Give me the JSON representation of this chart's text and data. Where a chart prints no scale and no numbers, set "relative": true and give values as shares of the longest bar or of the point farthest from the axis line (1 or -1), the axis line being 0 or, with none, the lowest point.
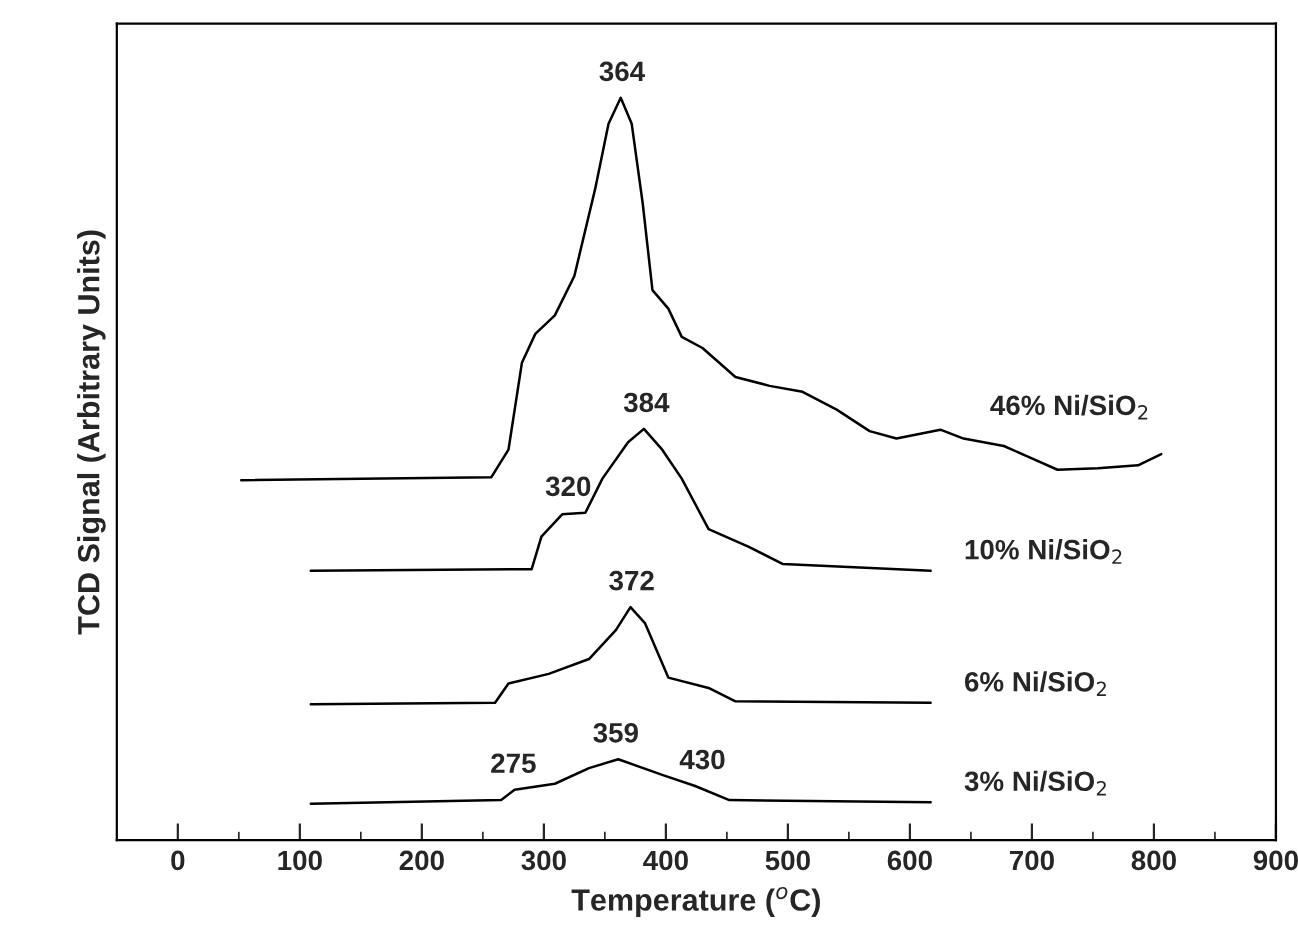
{
  "chart_data": {
    "type": "line",
    "relative": true,
    "xlabel": "Temperature ($^{o}$C)",
    "ylabel": "TCD Signal (Arbitrary Units)",
    "xlim": [
      -50,
      900
    ],
    "xticks": [
      0,
      100,
      200,
      300,
      400,
      500,
      600,
      700,
      800,
      900
    ],
    "grid": false,
    "legend": false,
    "marker": "none",
    "line_style": "solid",
    "series": [
      {
        "name": "46% Ni/SiO$_{2}$",
        "color": "#000000",
        "x": [
          52,
          257,
          271,
          282,
          293,
          309,
          325,
          342,
          353,
          363,
          372,
          381,
          389,
          402,
          413,
          430,
          457,
          485,
          512,
          540,
          567,
          589,
          625,
          644,
          677,
          699,
          721,
          754,
          787,
          806
        ],
        "values": [
          0.485,
          0.489,
          0.526,
          0.643,
          0.682,
          0.707,
          0.76,
          0.877,
          0.965,
          1.0,
          0.965,
          0.858,
          0.741,
          0.716,
          0.678,
          0.663,
          0.624,
          0.612,
          0.604,
          0.58,
          0.551,
          0.541,
          0.553,
          0.541,
          0.531,
          0.515,
          0.499,
          0.501,
          0.505,
          0.52
        ]
      },
      {
        "name": "10% Ni/SiO$_{2}$",
        "color": "#000000",
        "x": [
          109,
          290,
          298,
          315,
          334,
          348,
          369,
          382,
          397,
          413,
          435,
          468,
          496,
          617
        ],
        "values": [
          0.363,
          0.365,
          0.409,
          0.439,
          0.441,
          0.487,
          0.536,
          0.554,
          0.526,
          0.487,
          0.419,
          0.395,
          0.372,
          0.363
        ]
      },
      {
        "name": "6% Ni/SiO$_{2}$",
        "color": "#000000",
        "x": [
          109,
          260,
          271,
          304,
          337,
          359,
          371,
          383,
          402,
          435,
          457,
          617
        ],
        "values": [
          0.183,
          0.185,
          0.211,
          0.224,
          0.244,
          0.283,
          0.314,
          0.292,
          0.219,
          0.205,
          0.187,
          0.185
        ]
      },
      {
        "name": "3% Ni/SiO$_{2}$",
        "color": "#000000",
        "x": [
          109,
          265,
          276,
          309,
          337,
          361,
          397,
          424,
          452,
          617
        ],
        "values": [
          0.049,
          0.054,
          0.068,
          0.076,
          0.097,
          0.109,
          0.088,
          0.073,
          0.054,
          0.051
        ]
      }
    ],
    "annotations": [
      {
        "text": "364",
        "x": 364,
        "y": 1.0
      },
      {
        "text": "384",
        "x": 384,
        "y": 0.554
      },
      {
        "text": "320",
        "x": 320,
        "y": 0.441
      },
      {
        "text": "372",
        "x": 372,
        "y": 0.314
      },
      {
        "text": "359",
        "x": 359,
        "y": 0.109
      },
      {
        "text": "275",
        "x": 275,
        "y": 0.068
      },
      {
        "text": "430",
        "x": 430,
        "y": 0.073
      }
    ]
  }
}
